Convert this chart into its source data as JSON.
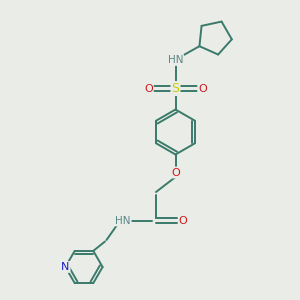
{
  "background_color": "#eaece8",
  "bond_color": "#3a7a6a",
  "atom_colors": {
    "N": "#1a1acc",
    "O": "#cc1a1a",
    "S": "#cccc00",
    "H": "#5a8888",
    "C": "#3a7a6a"
  },
  "figsize": [
    3.0,
    3.0
  ],
  "dpi": 100
}
